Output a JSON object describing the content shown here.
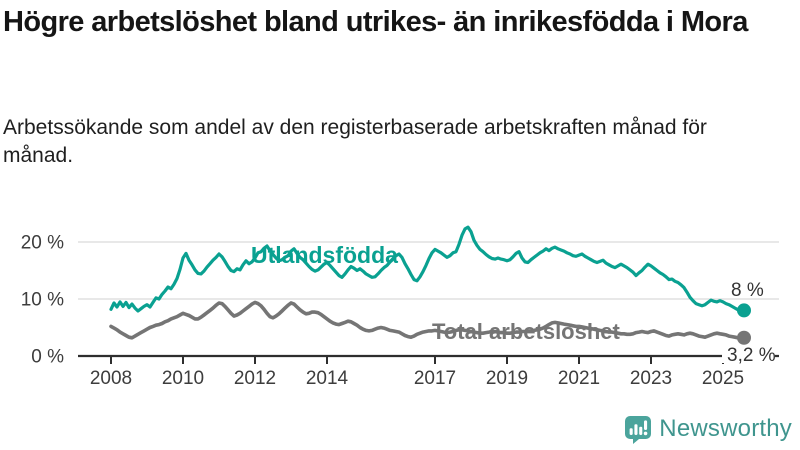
{
  "header": {
    "title": "Högre arbetslöshet bland utrikes- än inrikesfödda i Mora",
    "subtitle": "Arbetssökande som andel av den registerbaserade arbetskraften månad för månad."
  },
  "chart_data": {
    "type": "line",
    "x_unit": "month",
    "x_start": "2008-01",
    "x_end": "2025-08",
    "x_tick_labels": [
      "2008",
      "2010",
      "2012",
      "2014",
      "2017",
      "2019",
      "2021",
      "2023",
      "2025"
    ],
    "x_tick_years": [
      2008,
      2010,
      2012,
      2014,
      2017,
      2019,
      2021,
      2023,
      2025
    ],
    "y_ticks": [
      {
        "value": 0,
        "label": "0 %"
      },
      {
        "value": 10,
        "label": "10 %"
      },
      {
        "value": 20,
        "label": "20 %"
      }
    ],
    "ylim": [
      0,
      23.5
    ],
    "grid": "horizontal",
    "series": [
      {
        "name": "Utlandsfödda",
        "color": "#0aa191",
        "end_label": "8 %",
        "end_value": 8.0,
        "values": [
          8.2,
          9.3,
          8.6,
          9.5,
          8.7,
          9.4,
          8.5,
          9.1,
          8.4,
          7.9,
          8.3,
          8.7,
          9.0,
          8.6,
          9.4,
          10.2,
          10.0,
          10.8,
          11.4,
          12.1,
          11.8,
          12.6,
          13.6,
          15.2,
          17.2,
          18.0,
          16.8,
          16.0,
          15.1,
          14.5,
          14.4,
          14.9,
          15.6,
          16.2,
          16.8,
          17.3,
          17.9,
          17.4,
          16.6,
          15.7,
          15.0,
          14.8,
          15.3,
          15.1,
          16.0,
          16.7,
          16.2,
          16.5,
          17.2,
          18.1,
          18.3,
          18.9,
          19.3,
          18.5,
          17.8,
          17.2,
          16.7,
          16.9,
          17.3,
          17.6,
          18.4,
          18.8,
          18.0,
          17.3,
          16.9,
          16.3,
          15.7,
          15.2,
          14.9,
          15.1,
          15.6,
          16.1,
          16.4,
          15.9,
          15.3,
          14.7,
          14.1,
          13.8,
          14.4,
          15.1,
          15.7,
          15.4,
          15.0,
          15.3,
          14.9,
          14.4,
          14.1,
          13.8,
          13.9,
          14.4,
          15.0,
          15.5,
          15.9,
          16.5,
          17.1,
          17.6,
          17.9,
          17.3,
          16.2,
          15.3,
          14.3,
          13.4,
          13.2,
          13.9,
          14.8,
          15.9,
          17.1,
          18.1,
          18.7,
          18.4,
          18.1,
          17.7,
          17.3,
          17.6,
          18.1,
          18.3,
          19.6,
          21.2,
          22.3,
          22.6,
          21.8,
          20.3,
          19.4,
          18.7,
          18.3,
          17.8,
          17.4,
          17.1,
          17.0,
          17.2,
          17.0,
          16.9,
          16.7,
          16.9,
          17.4,
          18.0,
          18.3,
          17.2,
          16.5,
          16.4,
          16.9,
          17.3,
          17.7,
          18.1,
          18.4,
          18.8,
          18.5,
          18.9,
          19.1,
          18.8,
          18.6,
          18.4,
          18.1,
          17.9,
          17.6,
          17.5,
          17.7,
          17.9,
          17.5,
          17.2,
          16.9,
          16.6,
          16.4,
          16.6,
          16.8,
          16.3,
          16.0,
          15.7,
          15.5,
          15.8,
          16.1,
          15.8,
          15.5,
          15.1,
          14.7,
          14.1,
          14.6,
          15.0,
          15.6,
          16.1,
          15.8,
          15.4,
          15.0,
          14.6,
          14.3,
          13.9,
          13.4,
          13.5,
          13.1,
          12.9,
          12.5,
          12.0,
          11.2,
          10.3,
          9.7,
          9.2,
          9.0,
          8.8,
          9.0,
          9.4,
          9.8,
          9.6,
          9.5,
          9.7,
          9.5,
          9.2,
          9.0,
          8.7,
          8.4,
          8.1,
          7.8,
          8.0
        ]
      },
      {
        "name": "Total arbetslöshet",
        "color": "#757575",
        "end_label": "3,2 %",
        "end_value": 3.2,
        "values": [
          5.2,
          4.9,
          4.6,
          4.2,
          3.9,
          3.6,
          3.3,
          3.2,
          3.5,
          3.8,
          4.1,
          4.4,
          4.7,
          5.0,
          5.2,
          5.4,
          5.5,
          5.7,
          6.0,
          6.2,
          6.5,
          6.7,
          6.9,
          7.2,
          7.5,
          7.3,
          7.1,
          6.8,
          6.5,
          6.5,
          6.8,
          7.2,
          7.6,
          8.0,
          8.4,
          8.9,
          9.3,
          9.2,
          8.7,
          8.1,
          7.5,
          7.0,
          7.2,
          7.5,
          7.9,
          8.3,
          8.7,
          9.1,
          9.4,
          9.2,
          8.8,
          8.2,
          7.5,
          6.9,
          6.7,
          7.0,
          7.4,
          7.9,
          8.4,
          8.9,
          9.3,
          9.1,
          8.6,
          8.1,
          7.7,
          7.4,
          7.5,
          7.7,
          7.7,
          7.6,
          7.3,
          6.9,
          6.5,
          6.1,
          5.8,
          5.6,
          5.5,
          5.7,
          5.9,
          6.1,
          6.0,
          5.7,
          5.4,
          5.0,
          4.7,
          4.5,
          4.4,
          4.5,
          4.7,
          4.9,
          5.0,
          4.9,
          4.7,
          4.5,
          4.4,
          4.3,
          4.2,
          3.9,
          3.6,
          3.4,
          3.3,
          3.5,
          3.8,
          4.0,
          4.2,
          4.3,
          4.4,
          4.4,
          4.5,
          4.4,
          4.3,
          4.2,
          4.1,
          4.2,
          4.3,
          4.5,
          4.6,
          4.6,
          4.5,
          4.4,
          4.3,
          4.2,
          4.1,
          4.0,
          4.0,
          4.1,
          4.2,
          4.3,
          4.3,
          4.2,
          4.1,
          4.1,
          4.0,
          4.0,
          4.1,
          4.2,
          4.2,
          4.3,
          4.3,
          4.4,
          4.4,
          4.5,
          4.6,
          4.7,
          4.9,
          5.2,
          5.5,
          5.8,
          5.9,
          5.8,
          5.7,
          5.6,
          5.5,
          5.4,
          5.3,
          5.2,
          5.2,
          5.1,
          5.0,
          4.9,
          4.8,
          4.7,
          4.6,
          4.5,
          4.4,
          4.3,
          4.2,
          4.2,
          4.1,
          4.0,
          3.9,
          3.9,
          3.8,
          3.8,
          3.9,
          4.1,
          4.2,
          4.3,
          4.2,
          4.1,
          4.3,
          4.4,
          4.2,
          4.0,
          3.8,
          3.6,
          3.5,
          3.7,
          3.8,
          3.9,
          3.8,
          3.7,
          3.9,
          4.0,
          3.9,
          3.7,
          3.5,
          3.4,
          3.3,
          3.5,
          3.7,
          3.9,
          4.0,
          3.9,
          3.8,
          3.7,
          3.5,
          3.4,
          3.3,
          3.2,
          3.1,
          3.2
        ]
      }
    ]
  },
  "footer": {
    "brand": "Newsworthy",
    "brand_text_color": "#3f958e",
    "brand_icon_color": "#4ba49c"
  }
}
